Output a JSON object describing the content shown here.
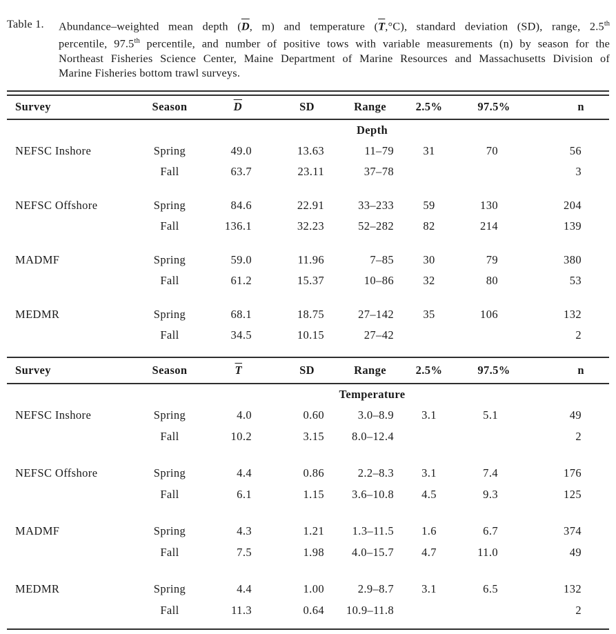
{
  "caption": {
    "label": "Table 1.",
    "line1": {
      "pre": "Abundance–weighted mean depth (",
      "depth_symbol": "D",
      "mid": ", m) and temperature (",
      "temp_symbol": "T",
      "tail": ",°C), standard deviation (SD), range, 2.5",
      "sup": "th"
    },
    "line2": {
      "pre": "percentile, 97.5",
      "sup": "th",
      "tail": " percentile, and number of positive tows with variable measurements (n) by season for the"
    },
    "line3": "Northeast Fisheries Science Center, Maine Department of Marine Resources and Massachusetts Division of",
    "line4": "Marine Fisheries bottom trawl surveys."
  },
  "tables": [
    {
      "section": "Depth",
      "columns": {
        "survey": "Survey",
        "season": "Season",
        "mean": "D",
        "sd": "SD",
        "range": "Range",
        "p2_5": "2.5%",
        "p97_5": "97.5%",
        "n": "n"
      },
      "rows": [
        {
          "survey": "NEFSC Inshore",
          "season": "Spring",
          "mean": "49.0",
          "sd": "13.63",
          "range": "11–79",
          "p2_5": "31",
          "p97_5": "70",
          "n": "56"
        },
        {
          "survey": "",
          "season": "Fall",
          "mean": "63.7",
          "sd": "23.11",
          "range": "37–78",
          "p2_5": "",
          "p97_5": "",
          "n": "3"
        },
        {
          "survey": "NEFSC Offshore",
          "season": "Spring",
          "mean": "84.6",
          "sd": "22.91",
          "range": "33–233",
          "p2_5": "59",
          "p97_5": "130",
          "n": "204"
        },
        {
          "survey": "",
          "season": "Fall",
          "mean": "136.1",
          "sd": "32.23",
          "range": "52–282",
          "p2_5": "82",
          "p97_5": "214",
          "n": "139"
        },
        {
          "survey": "MADMF",
          "season": "Spring",
          "mean": "59.0",
          "sd": "11.96",
          "range": "7–85",
          "p2_5": "30",
          "p97_5": "79",
          "n": "380"
        },
        {
          "survey": "",
          "season": "Fall",
          "mean": "61.2",
          "sd": "15.37",
          "range": "10–86",
          "p2_5": "32",
          "p97_5": "80",
          "n": "53"
        },
        {
          "survey": "MEDMR",
          "season": "Spring",
          "mean": "68.1",
          "sd": "18.75",
          "range": "27–142",
          "p2_5": "35",
          "p97_5": "106",
          "n": "132"
        },
        {
          "survey": "",
          "season": "Fall",
          "mean": "34.5",
          "sd": "10.15",
          "range": "27–42",
          "p2_5": "",
          "p97_5": "",
          "n": "2"
        }
      ]
    },
    {
      "section": "Temperature",
      "columns": {
        "survey": "Survey",
        "season": "Season",
        "mean": "T",
        "sd": "SD",
        "range": "Range",
        "p2_5": "2.5%",
        "p97_5": "97.5%",
        "n": "n"
      },
      "rows": [
        {
          "survey": "NEFSC Inshore",
          "season": "Spring",
          "mean": "4.0",
          "sd": "0.60",
          "range": "3.0–8.9",
          "p2_5": "3.1",
          "p97_5": "5.1",
          "n": "49"
        },
        {
          "survey": "",
          "season": "Fall",
          "mean": "10.2",
          "sd": "3.15",
          "range": "8.0–12.4",
          "p2_5": "",
          "p97_5": "",
          "n": "2"
        },
        {
          "survey": "NEFSC Offshore",
          "season": "Spring",
          "mean": "4.4",
          "sd": "0.86",
          "range": "2.2–8.3",
          "p2_5": "3.1",
          "p97_5": "7.4",
          "n": "176"
        },
        {
          "survey": "",
          "season": "Fall",
          "mean": "6.1",
          "sd": "1.15",
          "range": "3.6–10.8",
          "p2_5": "4.5",
          "p97_5": "9.3",
          "n": "125"
        },
        {
          "survey": "MADMF",
          "season": "Spring",
          "mean": "4.3",
          "sd": "1.21",
          "range": "1.3–11.5",
          "p2_5": "1.6",
          "p97_5": "6.7",
          "n": "374"
        },
        {
          "survey": "",
          "season": "Fall",
          "mean": "7.5",
          "sd": "1.98",
          "range": "4.0–15.7",
          "p2_5": "4.7",
          "p97_5": "11.0",
          "n": "49"
        },
        {
          "survey": "MEDMR",
          "season": "Spring",
          "mean": "4.4",
          "sd": "1.00",
          "range": "2.9–8.7",
          "p2_5": "3.1",
          "p97_5": "6.5",
          "n": "132"
        },
        {
          "survey": "",
          "season": "Fall",
          "mean": "11.3",
          "sd": "0.64",
          "range": "10.9–11.8",
          "p2_5": "",
          "p97_5": "",
          "n": "2"
        }
      ]
    }
  ]
}
